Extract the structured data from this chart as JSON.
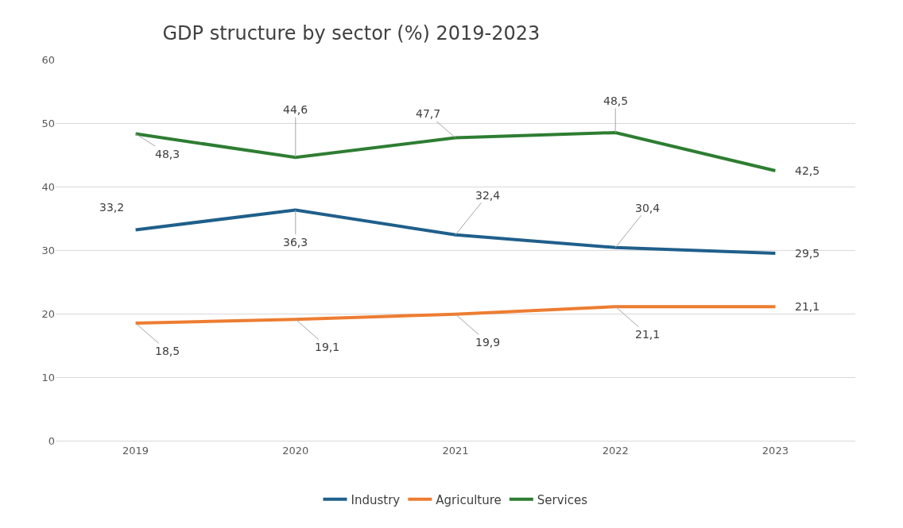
{
  "chart_data": {
    "type": "line",
    "title": "GDP structure by sector (%) 2019-2023",
    "categories": [
      "2019",
      "2020",
      "2021",
      "2022",
      "2023"
    ],
    "series": [
      {
        "name": "Industry",
        "color": "#1f5f8b",
        "values": [
          33.2,
          36.3,
          32.4,
          30.4,
          29.5
        ],
        "value_labels": [
          "33,2",
          "36,3",
          "32,4",
          "30,4",
          "29,5"
        ]
      },
      {
        "name": "Agriculture",
        "color": "#ed7d31",
        "values": [
          18.5,
          19.1,
          19.9,
          21.1,
          21.1
        ],
        "value_labels": [
          "18,5",
          "19,1",
          "19,9",
          "21,1",
          "21,1"
        ]
      },
      {
        "name": "Services",
        "color": "#2e7d32",
        "values": [
          48.3,
          44.6,
          47.7,
          48.5,
          42.5
        ],
        "value_labels": [
          "48,3",
          "44,6",
          "47,7",
          "48,5",
          "42,5"
        ]
      }
    ],
    "ylim": [
      0,
      60
    ],
    "yticks": [
      0,
      10,
      20,
      30,
      40,
      50,
      60
    ],
    "grid": "y",
    "legend": "bottom",
    "marker": "none",
    "line_style": "solid"
  }
}
